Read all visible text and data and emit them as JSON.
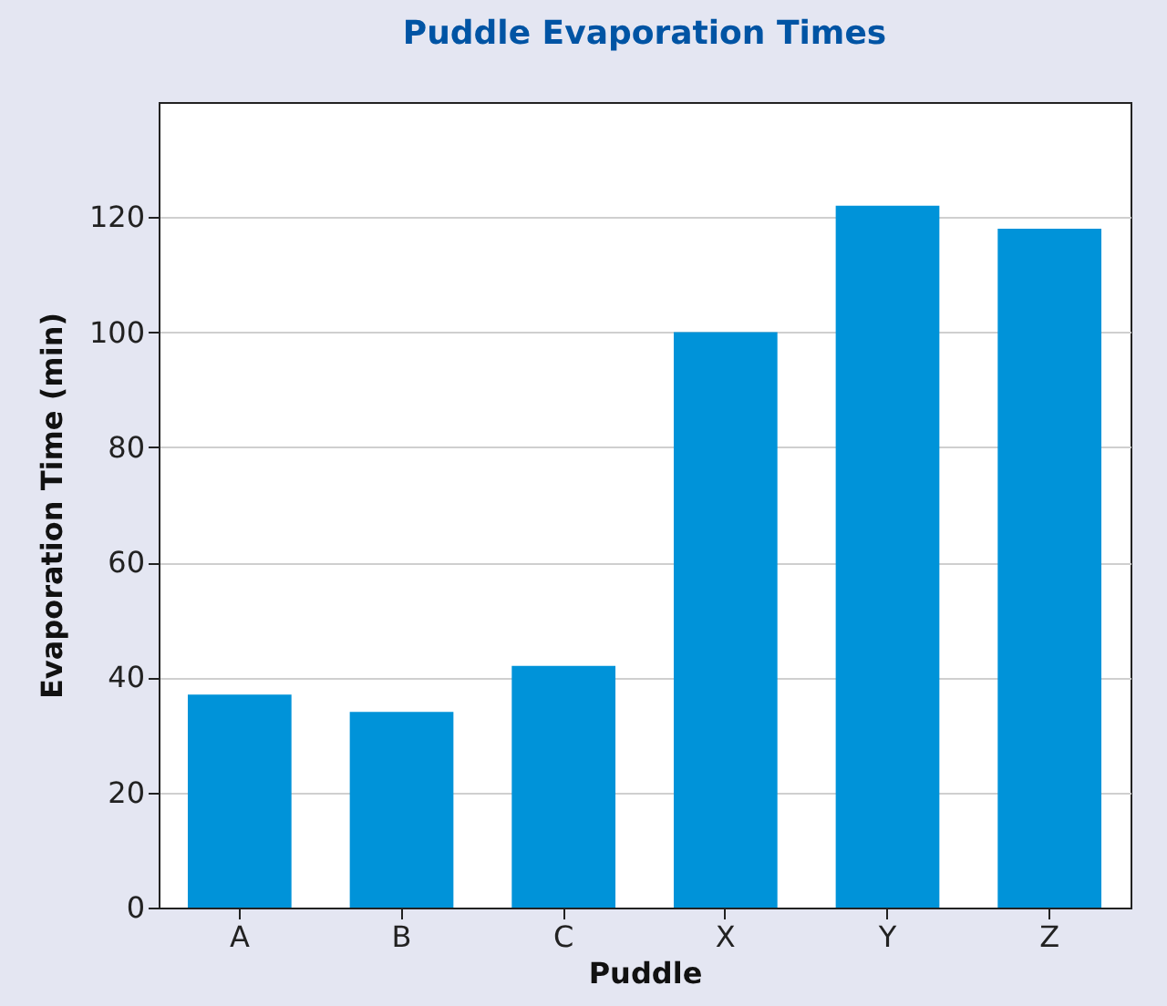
{
  "chart_data": {
    "type": "bar",
    "title": "Puddle Evaporation Times",
    "xlabel": "Puddle",
    "ylabel": "Evaporation Time (min)",
    "categories": [
      "A",
      "B",
      "C",
      "X",
      "Y",
      "Z"
    ],
    "values": [
      37,
      34,
      42,
      100,
      122,
      118
    ],
    "color": "#0093d9",
    "ylim": [
      0,
      140
    ],
    "yticks": [
      0,
      20,
      40,
      60,
      80,
      100,
      120
    ],
    "grid": "y"
  }
}
